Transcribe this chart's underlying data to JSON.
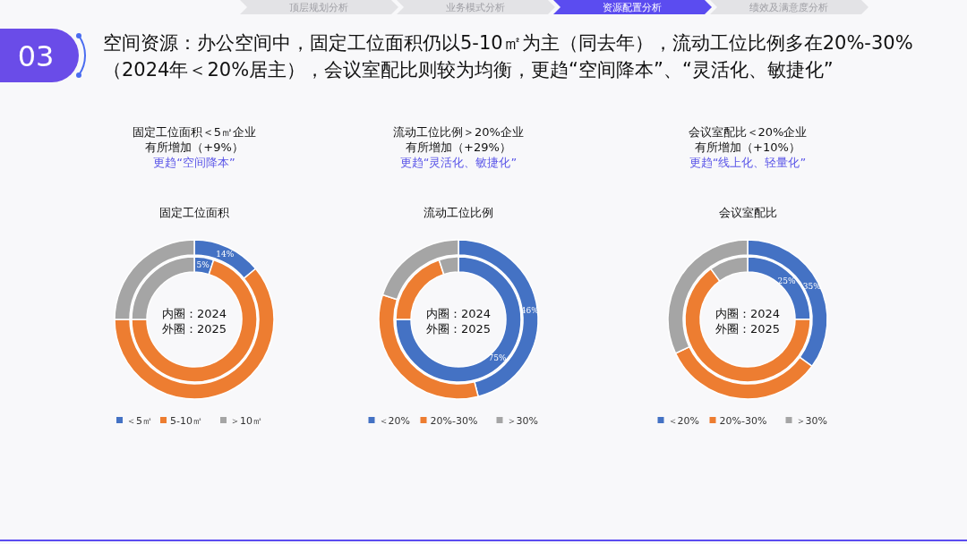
{
  "chart_data": [
    {
      "type": "other",
      "title": "空间资源：办公空间中，固定工位面积仍以5-10㎡为主（同去年），流动工位比例多在20%-30%（2024年＜20%居主），会议室配比则较为均衡，更趋“空间降本”、“灵活化、敏捷化”",
      "annotations": [
        "03",
        "顶层规划分析",
        "业务模式分析",
        "资源配置分析",
        "绩效及满意度分析"
      ]
    },
    {
      "type": "donut",
      "title": "固定工位面积",
      "annotations": [
        "固定工位面积＜5㎡企业",
        "有所增加（+9%）",
        "更趋“空间降本”",
        "内圈：2024",
        "外圈：2025"
      ],
      "categories": [
        "＜5㎡",
        "5-10㎡",
        "＞10㎡"
      ],
      "colors": [
        "#4472c4",
        "#ed7d31",
        "#a5a5a5"
      ],
      "legend": "bottom",
      "series": [
        {
          "values": [
            5,
            70,
            25
          ],
          "value_labels": [
            "5%",
            null,
            null
          ]
        },
        {
          "values": [
            14,
            61,
            25
          ],
          "value_labels": [
            "14%",
            null,
            null
          ]
        }
      ]
    },
    {
      "type": "donut",
      "title": "流动工位比例",
      "annotations": [
        "流动工位比例＞20%企业",
        "有所增加（+29%）",
        "更趋“灵活化、敏捷化”",
        "内圈：2024",
        "外圈：2025"
      ],
      "categories": [
        "＜20%",
        "20%-30%",
        "＞30%"
      ],
      "colors": [
        "#4472c4",
        "#ed7d31",
        "#a5a5a5"
      ],
      "legend": "bottom",
      "series": [
        {
          "values": [
            75,
            20,
            5
          ],
          "value_labels": [
            "75%",
            null,
            null
          ]
        },
        {
          "values": [
            46,
            34,
            20
          ],
          "value_labels": [
            "46%",
            null,
            null
          ]
        }
      ]
    },
    {
      "type": "donut",
      "title": "会议室配比",
      "annotations": [
        "会议室配比＜20%企业",
        "有所增加（+10%）",
        "更趋“线上化、轻量化”",
        "内圈：2024",
        "外圈：2025"
      ],
      "categories": [
        "＜20%",
        "20%-30%",
        "＞30%"
      ],
      "colors": [
        "#4472c4",
        "#ed7d31",
        "#a5a5a5"
      ],
      "legend": "bottom",
      "series": [
        {
          "values": [
            25,
            65,
            10
          ],
          "value_labels": [
            "25%",
            null,
            null
          ]
        },
        {
          "values": [
            35,
            33,
            32
          ],
          "value_labels": [
            "35%",
            null,
            null
          ]
        }
      ]
    }
  ]
}
